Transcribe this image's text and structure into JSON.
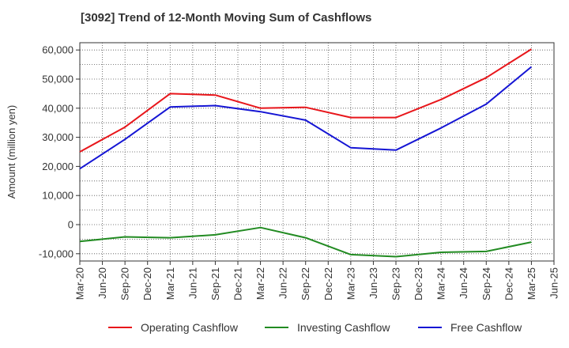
{
  "chart_data": {
    "type": "line",
    "title": "[3092]  Trend of 12-Month Moving Sum of Cashflows",
    "xlabel": "",
    "ylabel": "Amount (million yen)",
    "ylim": [
      -12500,
      62500
    ],
    "yticks": [
      60000,
      50000,
      40000,
      30000,
      20000,
      10000,
      0,
      -10000
    ],
    "ytick_labels": [
      "60,000",
      "50,000",
      "40,000",
      "30,000",
      "20,000",
      "10,000",
      "0",
      "-10,000"
    ],
    "categories": [
      "Mar-20",
      "Jun-20",
      "Sep-20",
      "Dec-20",
      "Mar-21",
      "Jun-21",
      "Sep-21",
      "Dec-21",
      "Mar-22",
      "Jun-22",
      "Sep-22",
      "Dec-22",
      "Mar-23",
      "Jun-23",
      "Sep-23",
      "Dec-23",
      "Mar-24",
      "Jun-24",
      "Sep-24",
      "Dec-24",
      "Mar-25",
      "Jun-25"
    ],
    "grid": true,
    "legend_position": "bottom",
    "series": [
      {
        "name": "Operating Cashflow",
        "color": "#e8161b",
        "x": [
          "Mar-20",
          "Sep-20",
          "Mar-21",
          "Sep-21",
          "Mar-22",
          "Sep-22",
          "Mar-23",
          "Sep-23",
          "Mar-24",
          "Sep-24",
          "Mar-25"
        ],
        "values": [
          25000,
          33500,
          45000,
          44500,
          40000,
          40300,
          36800,
          36800,
          43000,
          50500,
          60300
        ]
      },
      {
        "name": "Investing Cashflow",
        "color": "#228b22",
        "x": [
          "Mar-20",
          "Sep-20",
          "Mar-21",
          "Sep-21",
          "Mar-22",
          "Sep-22",
          "Mar-23",
          "Sep-23",
          "Mar-24",
          "Sep-24",
          "Mar-25"
        ],
        "values": [
          -5800,
          -4200,
          -4500,
          -3500,
          -1000,
          -4500,
          -10300,
          -11000,
          -9500,
          -9200,
          -6000
        ]
      },
      {
        "name": "Free Cashflow",
        "color": "#1515d4",
        "x": [
          "Mar-20",
          "Sep-20",
          "Mar-21",
          "Sep-21",
          "Mar-22",
          "Sep-22",
          "Mar-23",
          "Sep-23",
          "Mar-24",
          "Sep-24",
          "Mar-25"
        ],
        "values": [
          19200,
          29300,
          40400,
          40900,
          38800,
          35900,
          26400,
          25600,
          33200,
          41400,
          54200
        ]
      }
    ]
  }
}
